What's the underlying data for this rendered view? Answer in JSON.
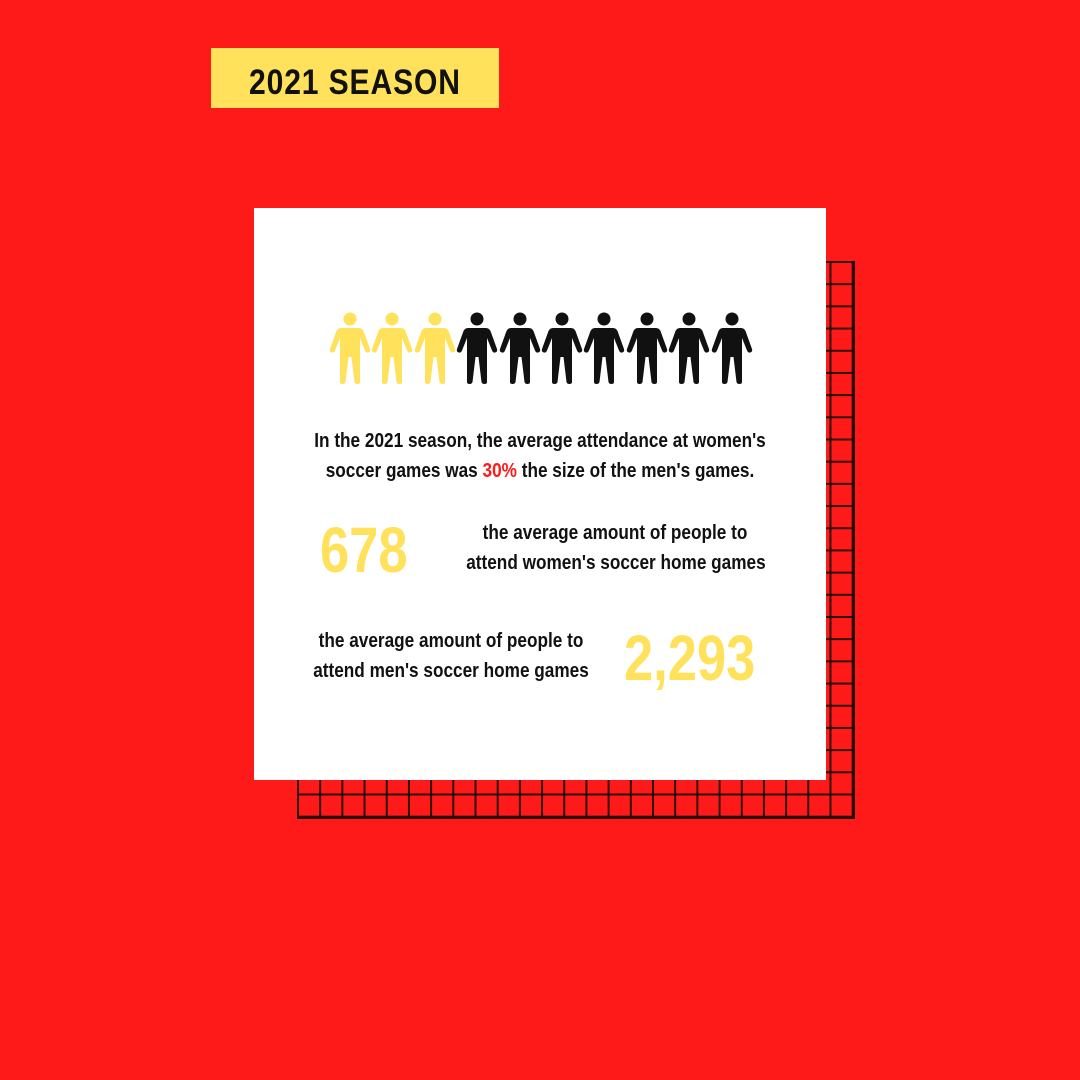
{
  "header": {
    "season_label": "2021 SEASON"
  },
  "colors": {
    "background": "#ff1a1a",
    "accent_yellow": "#ffe15c",
    "text": "#111111",
    "highlight": "#ff1a1a"
  },
  "pictogram": {
    "total": 10,
    "highlighted": 3,
    "icon": "person-icon"
  },
  "summary": {
    "line1": "In the 2021 season, the average attendance at women's",
    "line2_before": "soccer games was ",
    "line2_highlight": "30%",
    "line2_after": " the size of the men's games."
  },
  "women": {
    "value": "678",
    "desc_line1": "the average amount of people to",
    "desc_line2": "attend women's soccer home games"
  },
  "men": {
    "value": "2,293",
    "desc_line1": "the average amount of people to",
    "desc_line2": "attend men's soccer home games"
  }
}
